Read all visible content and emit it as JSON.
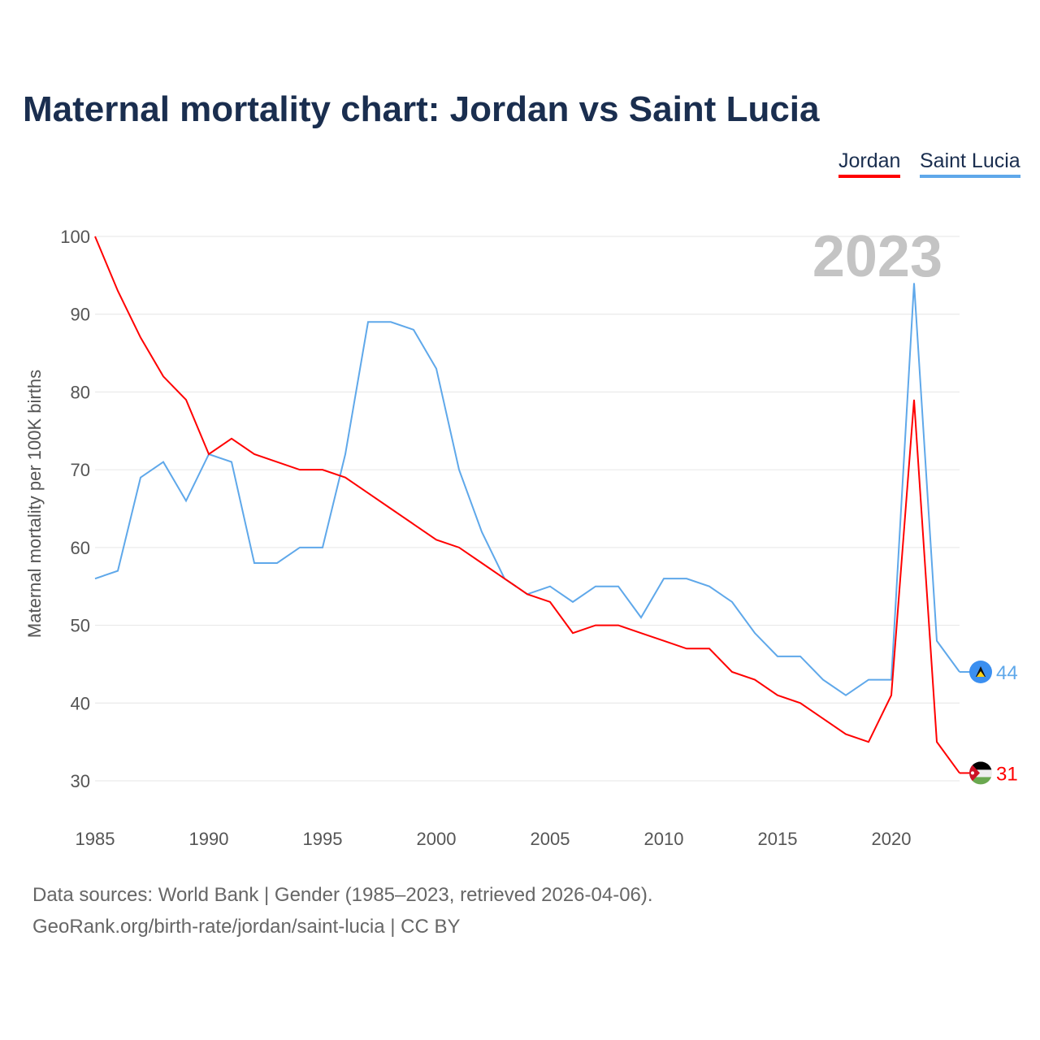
{
  "chart_data": {
    "type": "line",
    "title": "Maternal mortality chart: Jordan vs Saint Lucia",
    "ylabel": "Maternal mortality per 100K births",
    "xlabel": "",
    "ylim": [
      30,
      100
    ],
    "xlim": [
      1985,
      2023
    ],
    "yticks": [
      30,
      40,
      50,
      60,
      70,
      80,
      90,
      100
    ],
    "xticks": [
      1985,
      1990,
      1995,
      2000,
      2005,
      2010,
      2015,
      2020
    ],
    "grid": true,
    "legend_position": "top-right",
    "year_label": "2023",
    "x": [
      1985,
      1986,
      1987,
      1988,
      1989,
      1990,
      1991,
      1992,
      1993,
      1994,
      1995,
      1996,
      1997,
      1998,
      1999,
      2000,
      2001,
      2002,
      2003,
      2004,
      2005,
      2006,
      2007,
      2008,
      2009,
      2010,
      2011,
      2012,
      2013,
      2014,
      2015,
      2016,
      2017,
      2018,
      2019,
      2020,
      2021,
      2022,
      2023
    ],
    "series": [
      {
        "name": "Jordan",
        "color": "#ff0000",
        "end_label": "31",
        "values": [
          100,
          93,
          87,
          82,
          79,
          72,
          74,
          72,
          71,
          70,
          70,
          69,
          67,
          65,
          63,
          61,
          60,
          58,
          56,
          54,
          53,
          49,
          50,
          50,
          49,
          48,
          47,
          47,
          44,
          43,
          41,
          40,
          38,
          36,
          35,
          41,
          79,
          35,
          31
        ]
      },
      {
        "name": "Saint Lucia",
        "color": "#5fa8ea",
        "end_label": "44",
        "values": [
          56,
          57,
          69,
          71,
          66,
          72,
          71,
          58,
          58,
          60,
          60,
          72,
          89,
          89,
          88,
          83,
          70,
          62,
          56,
          54,
          55,
          53,
          55,
          55,
          51,
          56,
          56,
          55,
          53,
          49,
          46,
          46,
          43,
          41,
          43,
          43,
          94,
          48,
          44
        ]
      }
    ]
  },
  "footer": {
    "line1": "Data sources: World Bank | Gender (1985–2023, retrieved 2026-04-06).",
    "line2": "GeoRank.org/birth-rate/jordan/saint-lucia | CC BY"
  }
}
